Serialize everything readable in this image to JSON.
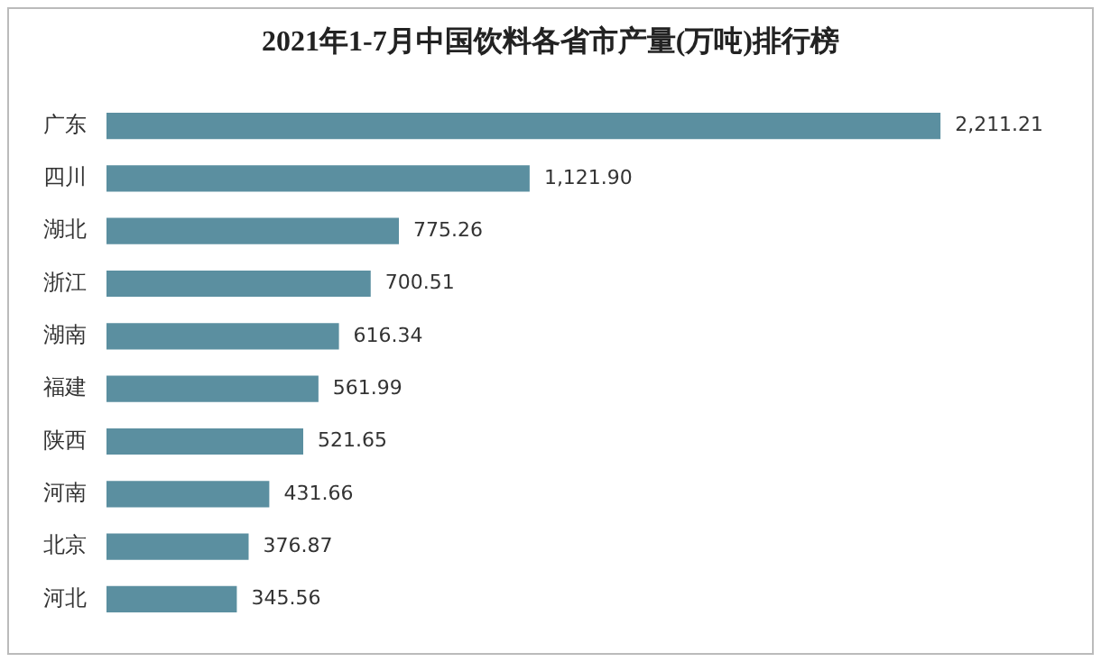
{
  "chart_data": {
    "type": "bar",
    "orientation": "horizontal",
    "title": "2021年1-7月中国饮料各省市产量(万吨)排行榜",
    "categories": [
      "广东",
      "四川",
      "湖北",
      "浙江",
      "湖南",
      "福建",
      "陕西",
      "河南",
      "北京",
      "河北"
    ],
    "values": [
      2211.21,
      1121.9,
      775.26,
      700.51,
      616.34,
      561.99,
      521.65,
      431.66,
      376.87,
      345.56
    ],
    "value_labels": [
      "2,211.21",
      "1,121.90",
      "775.26",
      "700.51",
      "616.34",
      "561.99",
      "521.65",
      "431.66",
      "376.87",
      "345.56"
    ],
    "color": "#5b8fa0",
    "legend": false
  }
}
